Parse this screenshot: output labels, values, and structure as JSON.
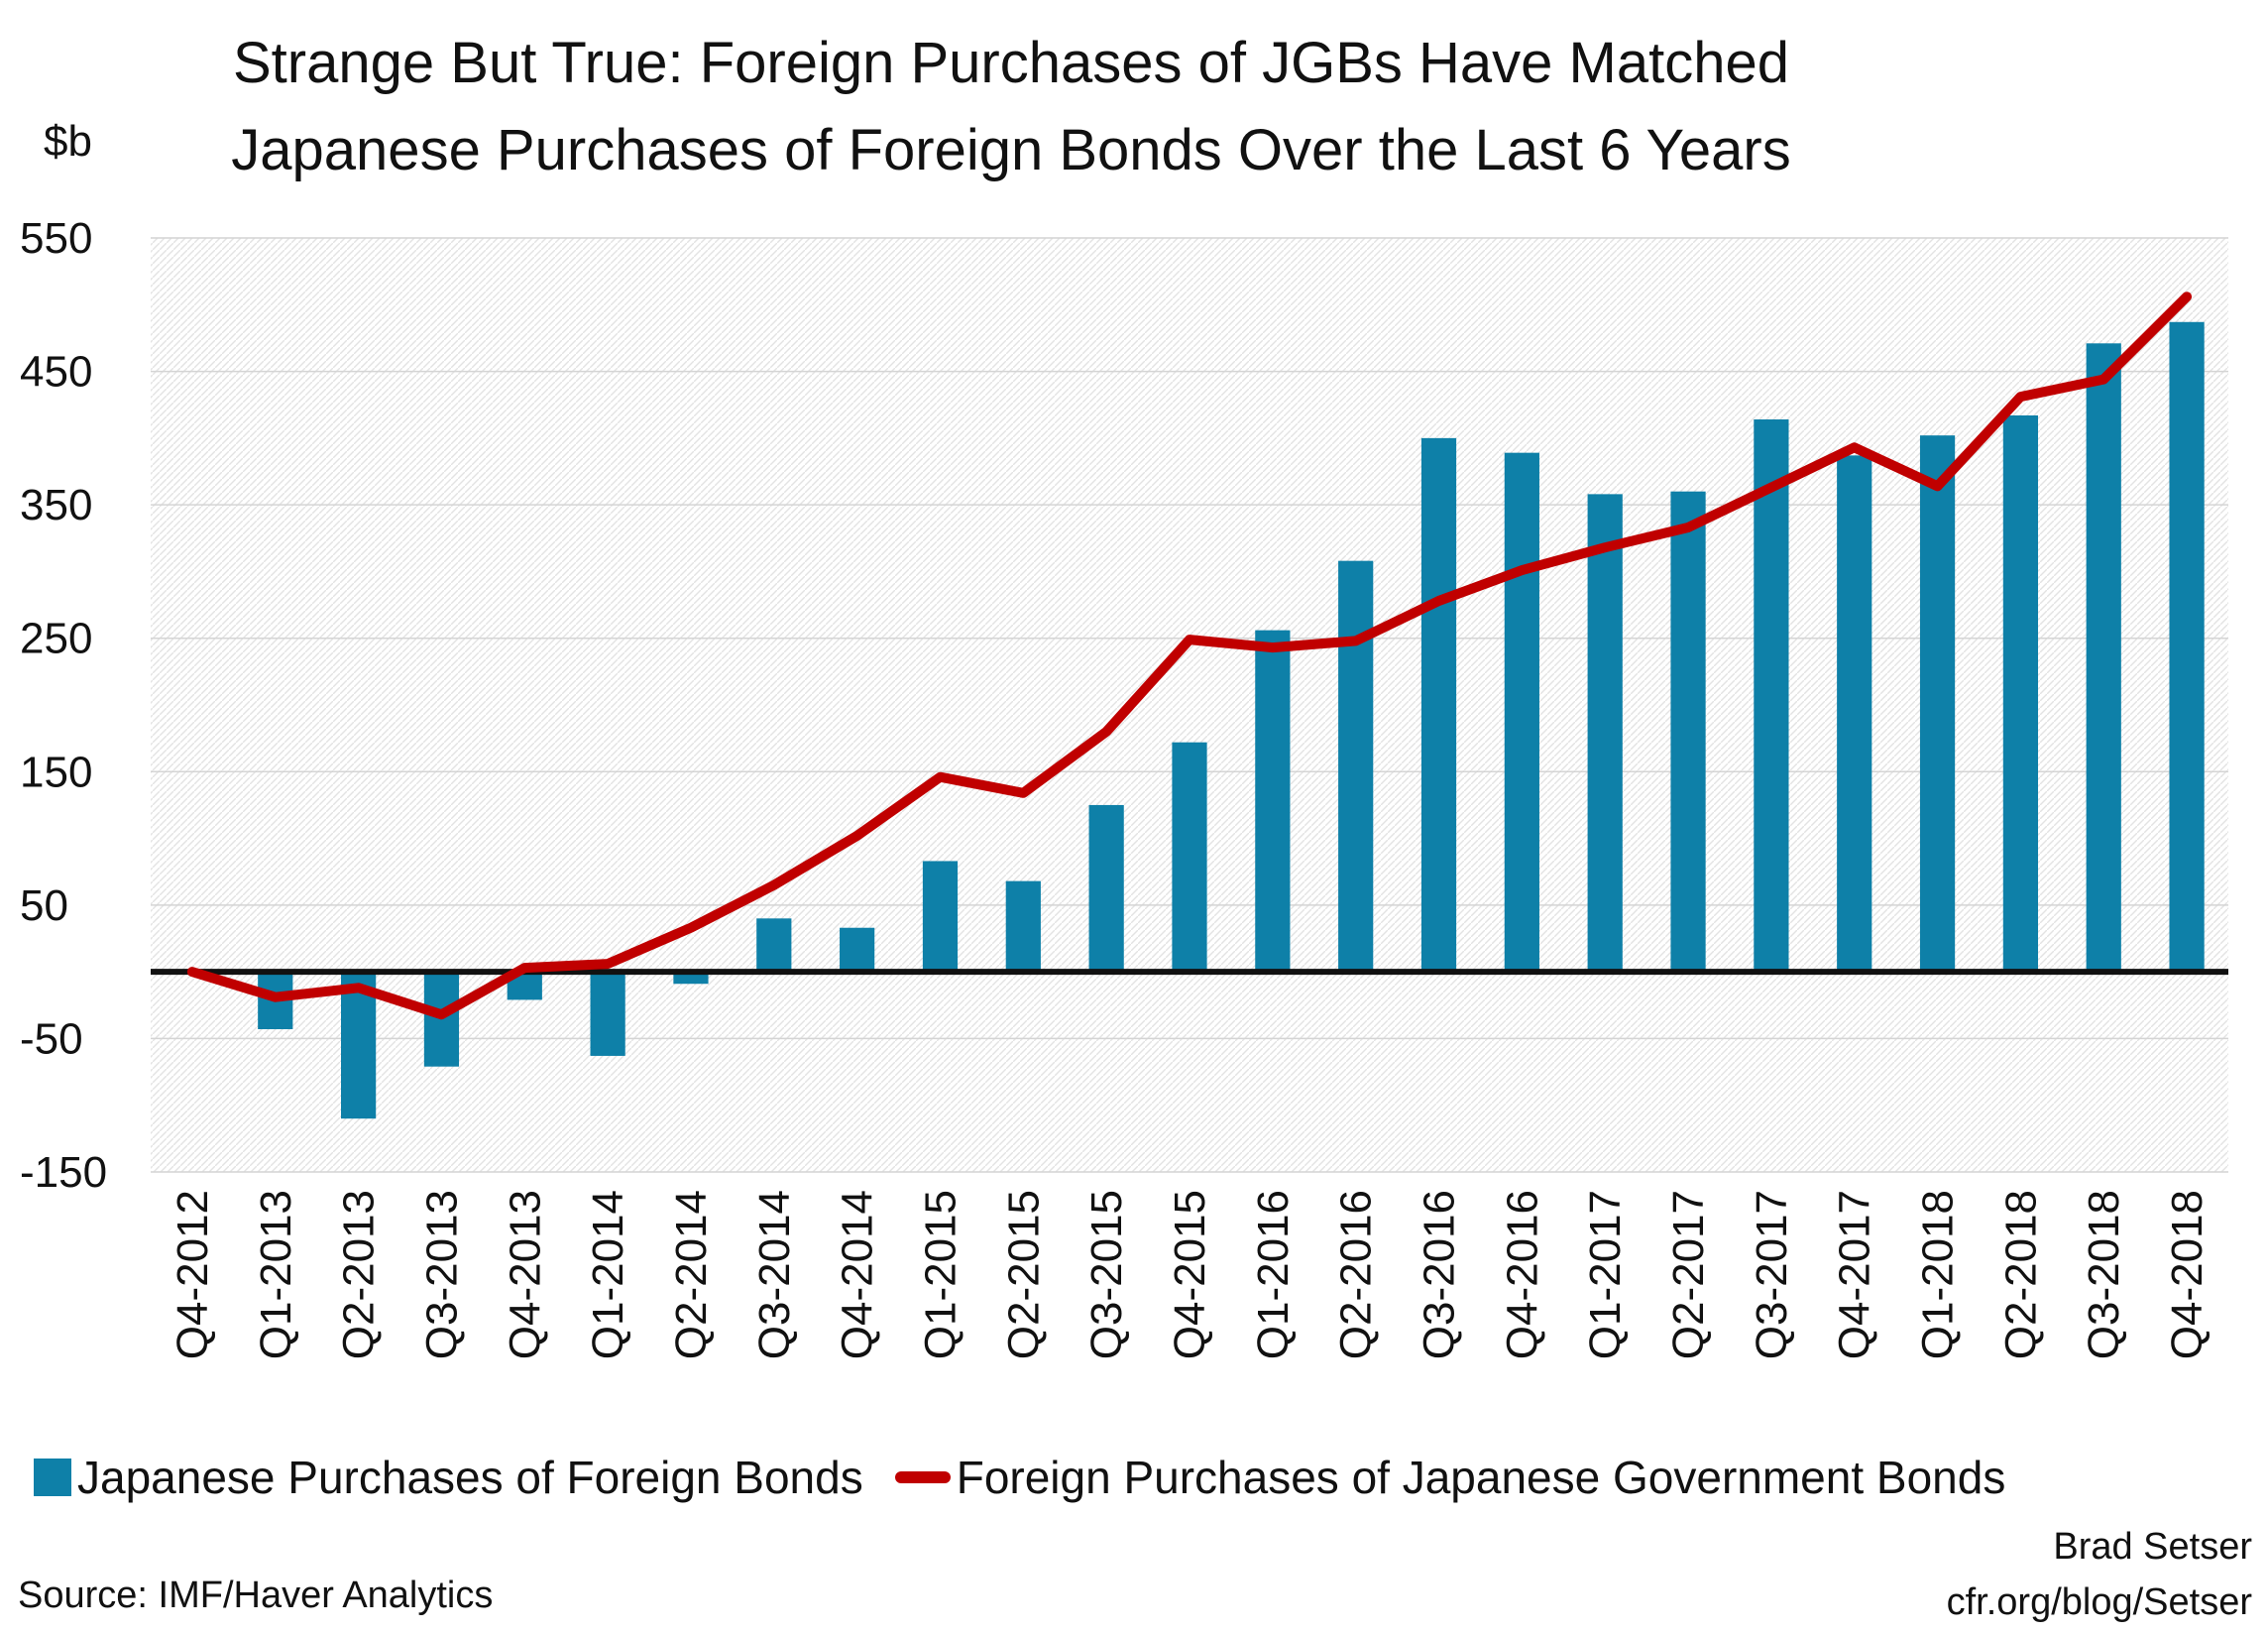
{
  "chart_data": {
    "type": "bar",
    "title_lines": [
      "Strange But True: Foreign Purchases of JGBs Have Matched",
      "Japanese Purchases of Foreign Bonds Over the Last 6 Years"
    ],
    "ylabel": "$b",
    "ylim": [
      -150,
      550
    ],
    "yticks": [
      550,
      450,
      350,
      250,
      150,
      50,
      -50,
      -150
    ],
    "grid": true,
    "legend_position": "bottom",
    "categories": [
      "Q4-2012",
      "Q1-2013",
      "Q2-2013",
      "Q3-2013",
      "Q4-2013",
      "Q1-2014",
      "Q2-2014",
      "Q3-2014",
      "Q4-2014",
      "Q1-2015",
      "Q2-2015",
      "Q3-2015",
      "Q4-2015",
      "Q1-2016",
      "Q2-2016",
      "Q3-2016",
      "Q4-2016",
      "Q1-2017",
      "Q2-2017",
      "Q3-2017",
      "Q4-2017",
      "Q1-2018",
      "Q2-2018",
      "Q3-2018",
      "Q4-2018"
    ],
    "series": [
      {
        "name": "Japanese Purchases of Foreign Bonds",
        "type": "bar",
        "color": "#0e80a8",
        "values": [
          0,
          -43,
          -110,
          -71,
          -21,
          -63,
          -9,
          40,
          33,
          83,
          68,
          125,
          172,
          256,
          308,
          400,
          389,
          358,
          360,
          414,
          387,
          402,
          417,
          471,
          487
        ]
      },
      {
        "name": "Foreign Purchases of Japanese Government Bonds",
        "type": "line",
        "color": "#c00000",
        "values": [
          0,
          -19,
          -12,
          -32,
          3,
          6,
          33,
          65,
          102,
          146,
          134,
          180,
          249,
          243,
          248,
          278,
          301,
          318,
          333,
          363,
          393,
          364,
          431,
          444,
          506
        ]
      }
    ],
    "source": "Source: IMF/Haver Analytics",
    "author_lines": [
      "Brad Setser",
      "cfr.org/blog/Setser"
    ]
  }
}
